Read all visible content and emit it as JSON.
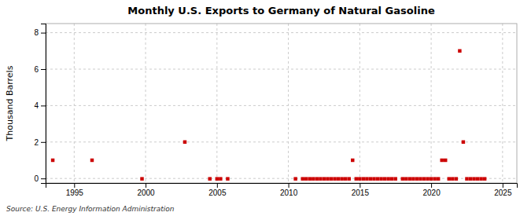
{
  "chart_data": {
    "type": "scatter",
    "title": "Monthly U.S. Exports to Germany of Natural Gasoline",
    "ylabel": "Thousand Barrels",
    "annotations": [
      "Source: U.S. Energy Information Administration"
    ],
    "color": "#cc0000",
    "marker": "square",
    "grid": true,
    "xlim": [
      1993.0,
      2026.0
    ],
    "ylim": [
      -0.25,
      8.5
    ],
    "xticks": [
      1995,
      2000,
      2005,
      2010,
      2015,
      2020,
      2025
    ],
    "yticks": [
      0,
      2,
      4,
      6,
      8
    ],
    "x": [
      1993.5,
      1996.25,
      2002.75,
      1999.75,
      2004.5,
      2005.0,
      2005.25,
      2005.75,
      2010.5,
      2011.0,
      2011.25,
      2011.5,
      2011.75,
      2012.0,
      2012.25,
      2012.5,
      2012.75,
      2013.0,
      2013.25,
      2013.5,
      2013.75,
      2014.0,
      2014.25,
      2014.5,
      2014.75,
      2015.0,
      2015.25,
      2015.5,
      2015.75,
      2016.0,
      2016.25,
      2016.5,
      2016.75,
      2017.0,
      2017.25,
      2017.5,
      2018.0,
      2018.25,
      2018.5,
      2018.75,
      2019.0,
      2019.25,
      2019.5,
      2019.75,
      2020.0,
      2020.25,
      2020.5,
      2020.75,
      2021.0,
      2021.25,
      2021.5,
      2021.75,
      2022.0,
      2022.25,
      2022.5,
      2022.75,
      2023.0,
      2023.25,
      2023.5,
      2023.75
    ],
    "values": [
      1,
      1,
      2,
      -0.02,
      -0.02,
      -0.02,
      -0.02,
      -0.02,
      -0.02,
      -0.02,
      -0.02,
      -0.02,
      -0.02,
      -0.02,
      -0.02,
      -0.02,
      -0.02,
      -0.02,
      -0.02,
      -0.02,
      -0.02,
      -0.02,
      -0.02,
      1,
      -0.02,
      -0.02,
      -0.02,
      -0.02,
      -0.02,
      -0.02,
      -0.02,
      -0.02,
      -0.02,
      -0.02,
      -0.02,
      -0.02,
      -0.02,
      -0.02,
      -0.02,
      -0.02,
      -0.02,
      -0.02,
      -0.02,
      -0.02,
      -0.02,
      -0.02,
      -0.02,
      1,
      1,
      -0.02,
      -0.02,
      -0.02,
      7,
      2,
      -0.02,
      -0.02,
      -0.02,
      -0.02,
      -0.02,
      -0.02
    ]
  }
}
